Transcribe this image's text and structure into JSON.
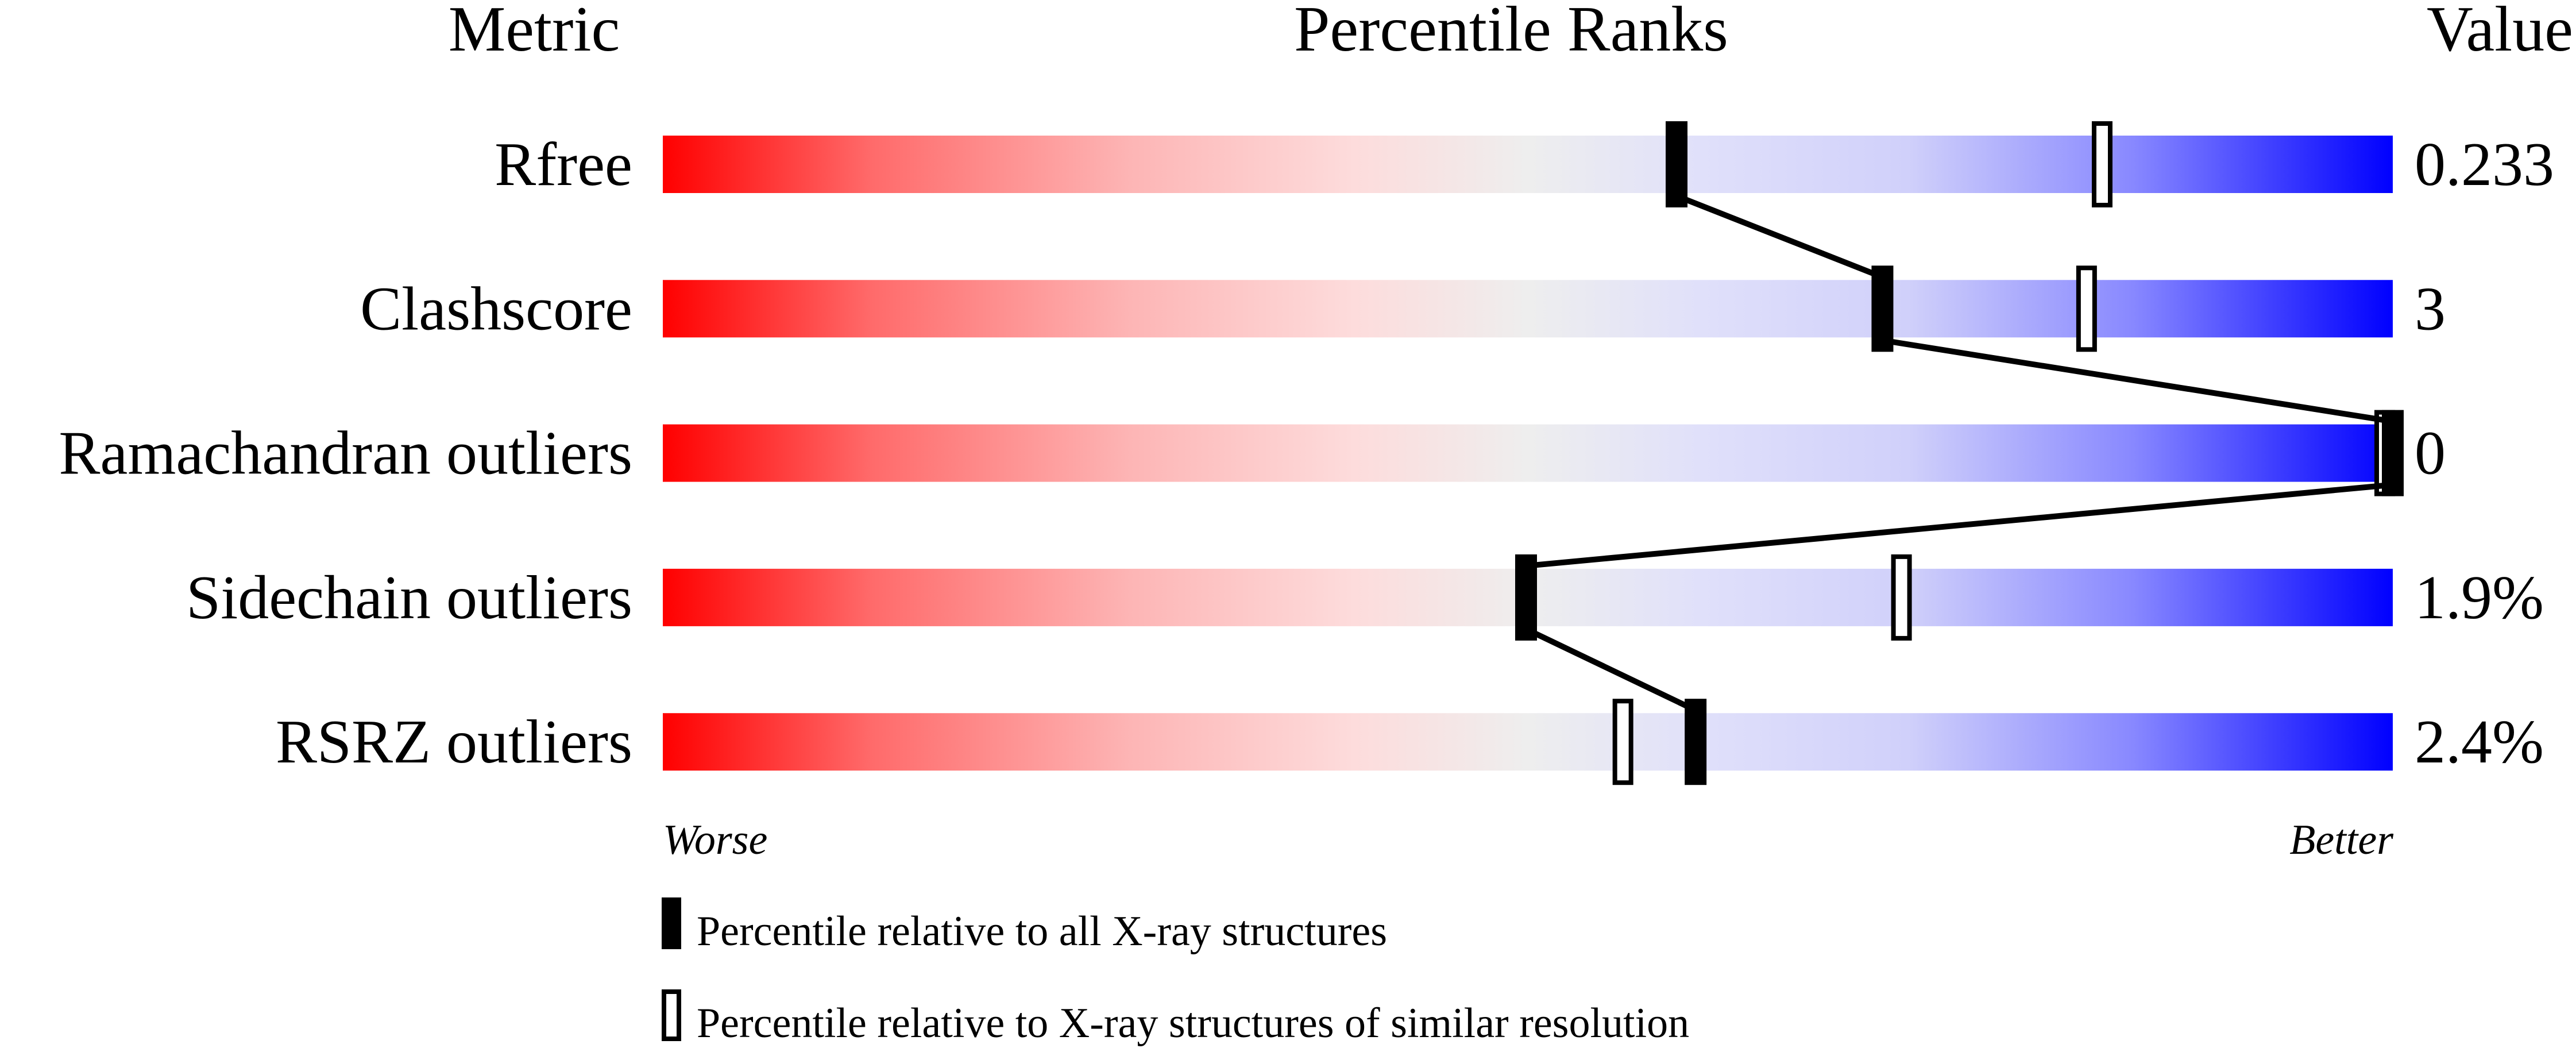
{
  "chart_data": {
    "type": "percentile-slider",
    "headers": {
      "metric": "Metric",
      "ranks": "Percentile Ranks",
      "value": "Value"
    },
    "axis": {
      "min_label": "Worse",
      "max_label": "Better",
      "range": [
        0,
        100
      ]
    },
    "metrics": [
      {
        "name": "Rfree",
        "value": "0.233",
        "percentile_all": 58.6,
        "percentile_similar": 83.2
      },
      {
        "name": "Clashscore",
        "value": "3",
        "percentile_all": 70.5,
        "percentile_similar": 82.3
      },
      {
        "name": "Ramachandran outliers",
        "value": "0",
        "percentile_all": 100,
        "percentile_similar": 100
      },
      {
        "name": "Sidechain outliers",
        "value": "1.9%",
        "percentile_all": 49.9,
        "percentile_similar": 71.6
      },
      {
        "name": "RSRZ outliers",
        "value": "2.4%",
        "percentile_all": 59.7,
        "percentile_similar": 55.5
      }
    ],
    "legend": [
      {
        "marker": "filled",
        "label": "Percentile relative to all X-ray structures"
      },
      {
        "marker": "open",
        "label": "Percentile relative to X-ray structures of similar resolution"
      }
    ],
    "colors": {
      "worse": "#ff0000",
      "middle": "#eeeeee",
      "better": "#0000ff",
      "marker": "#000000"
    }
  }
}
